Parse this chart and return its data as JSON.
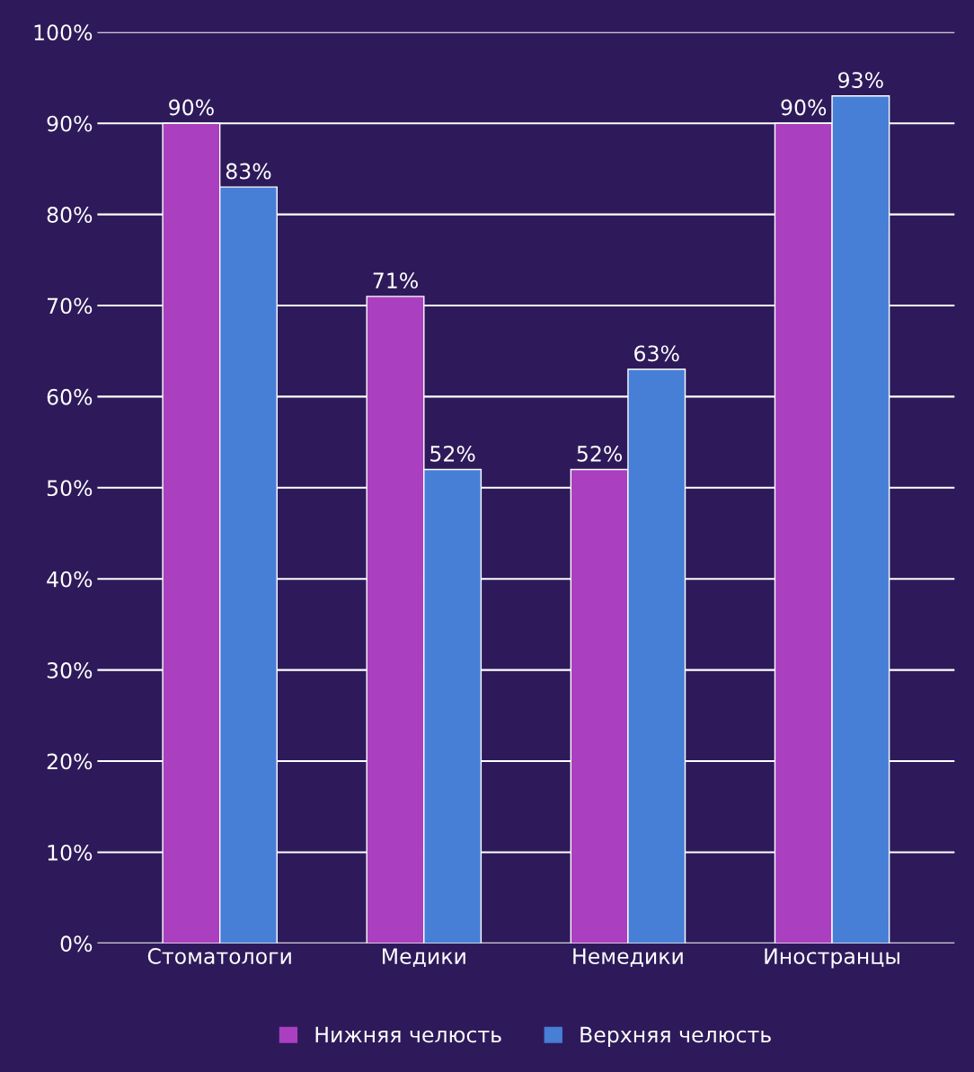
{
  "chart_data": {
    "type": "bar",
    "categories": [
      "Стоматологи",
      "Медики",
      "Немедики",
      "Иностранцы"
    ],
    "series": [
      {
        "name": "Нижняя челюсть",
        "color": "#aa3fc0",
        "values": [
          90,
          71,
          52,
          90
        ],
        "value_labels": [
          "90%",
          "71%",
          "52%",
          "90%"
        ]
      },
      {
        "name": "Верхняя челюсть",
        "color": "#477ed6",
        "values": [
          83,
          52,
          63,
          93
        ],
        "value_labels": [
          "83%",
          "52%",
          "63%",
          "93%"
        ]
      }
    ],
    "ylim": [
      0,
      100
    ],
    "yticks": [
      {
        "value": 0,
        "label": "0%"
      },
      {
        "value": 10,
        "label": "10%"
      },
      {
        "value": 20,
        "label": "20%"
      },
      {
        "value": 30,
        "label": "30%"
      },
      {
        "value": 40,
        "label": "40%"
      },
      {
        "value": 50,
        "label": "50%"
      },
      {
        "value": 60,
        "label": "60%"
      },
      {
        "value": 70,
        "label": "70%"
      },
      {
        "value": 80,
        "label": "80%"
      },
      {
        "value": 90,
        "label": "90%"
      },
      {
        "value": 100,
        "label": "100%"
      }
    ],
    "grid": "y",
    "legend": "bottom"
  }
}
